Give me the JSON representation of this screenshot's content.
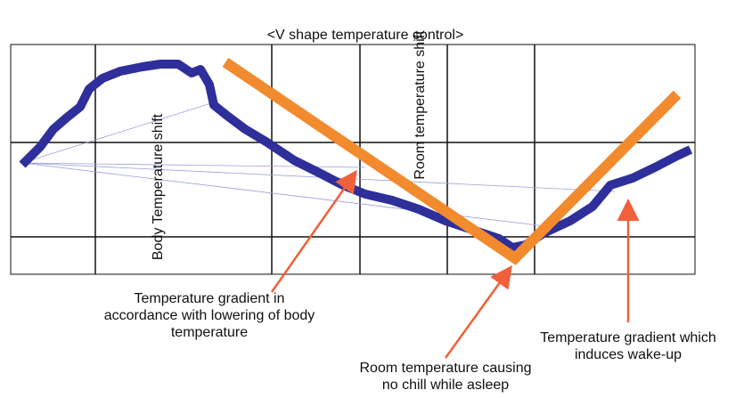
{
  "title": "<V shape temperature control>",
  "labels": {
    "body": "Body Temperature shift",
    "room": "Room temperature shift"
  },
  "annotations": [
    {
      "lines": [
        "Temperature gradient in",
        "accordance with lowering of body",
        "temperature"
      ]
    },
    {
      "lines": [
        "Room temperature causing",
        "no chill while asleep"
      ]
    },
    {
      "lines": [
        "Temperature gradient which",
        "induces wake-up"
      ]
    }
  ]
}
